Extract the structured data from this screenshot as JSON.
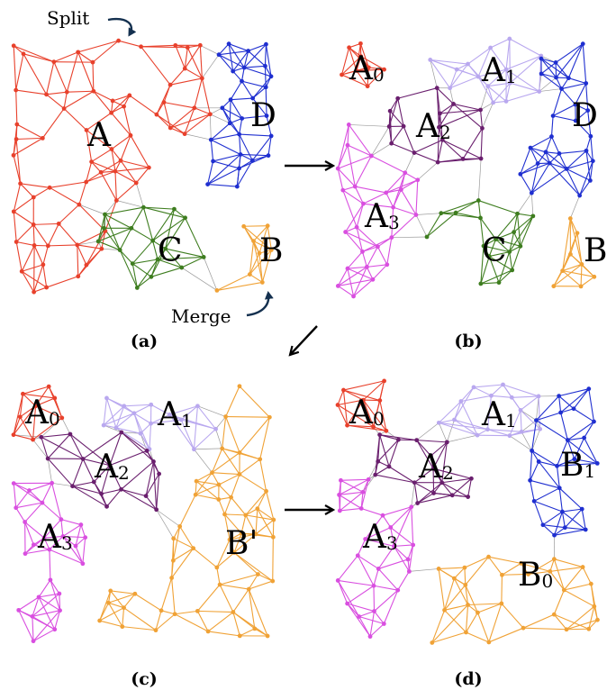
{
  "panels": [
    {
      "id": "a",
      "caption": "(a)",
      "clusters": [
        {
          "id": "A",
          "label": "A",
          "sub": "",
          "color": "#e8412c"
        },
        {
          "id": "C",
          "label": "C",
          "sub": "",
          "color": "#3e7d1f"
        },
        {
          "id": "D",
          "label": "D",
          "sub": "",
          "color": "#1f2fd0"
        },
        {
          "id": "B",
          "label": "B",
          "sub": "",
          "color": "#f0a236"
        }
      ]
    },
    {
      "id": "b",
      "caption": "(b)",
      "clusters": [
        {
          "id": "A0",
          "label": "A",
          "sub": "0",
          "color": "#e8412c"
        },
        {
          "id": "A1",
          "label": "A",
          "sub": "1",
          "color": "#b9a8ef"
        },
        {
          "id": "A2",
          "label": "A",
          "sub": "2",
          "color": "#6a1f6e"
        },
        {
          "id": "A3",
          "label": "A",
          "sub": "3",
          "color": "#d94fe0"
        },
        {
          "id": "D",
          "label": "D",
          "sub": "",
          "color": "#1f2fd0"
        },
        {
          "id": "C",
          "label": "C",
          "sub": "",
          "color": "#3e7d1f"
        },
        {
          "id": "B",
          "label": "B",
          "sub": "",
          "color": "#f0a236"
        }
      ]
    },
    {
      "id": "c",
      "caption": "(c)",
      "clusters": [
        {
          "id": "A0",
          "label": "A",
          "sub": "0",
          "color": "#e8412c"
        },
        {
          "id": "A1",
          "label": "A",
          "sub": "1",
          "color": "#b9a8ef"
        },
        {
          "id": "A2",
          "label": "A",
          "sub": "2",
          "color": "#6a1f6e"
        },
        {
          "id": "A3",
          "label": "A",
          "sub": "3",
          "color": "#d94fe0"
        },
        {
          "id": "Bp",
          "label": "B'",
          "sub": "",
          "color": "#f0a236"
        }
      ]
    },
    {
      "id": "d",
      "caption": "(d)",
      "clusters": [
        {
          "id": "A0",
          "label": "A",
          "sub": "0",
          "color": "#e8412c"
        },
        {
          "id": "A1",
          "label": "A",
          "sub": "1",
          "color": "#b9a8ef"
        },
        {
          "id": "A2",
          "label": "A",
          "sub": "2",
          "color": "#6a1f6e"
        },
        {
          "id": "A3",
          "label": "A",
          "sub": "3",
          "color": "#d94fe0"
        },
        {
          "id": "B1",
          "label": "B",
          "sub": "1",
          "color": "#1f2fd0"
        },
        {
          "id": "B0",
          "label": "B",
          "sub": "0",
          "color": "#f0a236"
        }
      ]
    }
  ],
  "annotations": {
    "split": "Split",
    "merge": "Merge"
  },
  "colors": {
    "inter_edge": "#9a9a9a",
    "annotation_arrow": "#14304f",
    "flow_arrow": "#000000"
  }
}
